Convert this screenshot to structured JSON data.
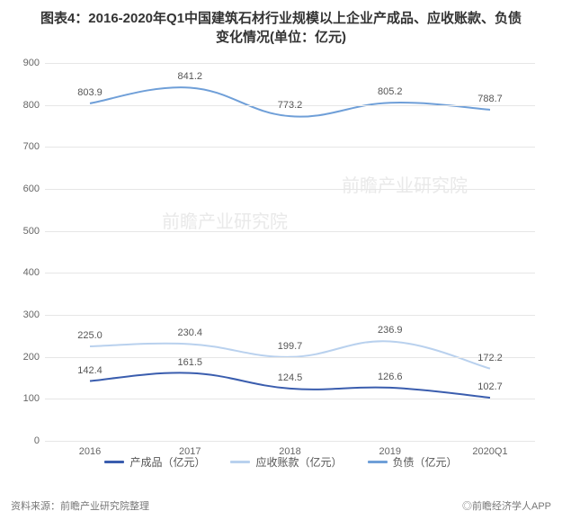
{
  "title_line1": "图表4：2016-2020年Q1中国建筑石材行业规模以上企业产成品、应收账款、负债",
  "title_line2": "变化情况(单位：亿元)",
  "title_fontsize": 15,
  "title_color": "#333333",
  "chart": {
    "type": "line",
    "background_color": "#ffffff",
    "grid_color": "#e6e6e6",
    "ylim": [
      0,
      900
    ],
    "ytick_step": 100,
    "yticks": [
      0,
      100,
      200,
      300,
      400,
      500,
      600,
      700,
      800,
      900
    ],
    "categories": [
      "2016",
      "2017",
      "2018",
      "2019",
      "2020Q1"
    ],
    "line_width": 2,
    "curve_smoothing": 0.2,
    "series": [
      {
        "name": "产成品（亿元）",
        "key": "chengpin",
        "color": "#3a5dae",
        "values": [
          142.4,
          161.5,
          124.5,
          126.6,
          102.7
        ]
      },
      {
        "name": "应收账款（亿元）",
        "key": "yingshou",
        "color": "#b9d1ee",
        "values": [
          225.0,
          230.4,
          199.7,
          236.9,
          172.2
        ]
      },
      {
        "name": "负债（亿元）",
        "key": "fuzhai",
        "color": "#6f9fd8",
        "values": [
          803.9,
          841.2,
          773.2,
          805.2,
          788.7
        ]
      }
    ],
    "axis_label_fontsize": 11,
    "data_label_fontsize": 11,
    "data_label_color": "#555555"
  },
  "legend": {
    "items": [
      {
        "label": "产成品（亿元）",
        "color": "#3a5dae"
      },
      {
        "label": "应收账款（亿元）",
        "color": "#b9d1ee"
      },
      {
        "label": "负债（亿元）",
        "color": "#6f9fd8"
      }
    ]
  },
  "watermark_text": "前瞻产业研究院",
  "source_label": "资料来源：前瞻产业研究院整理",
  "app_credit": "◎前瞻经济学人APP"
}
